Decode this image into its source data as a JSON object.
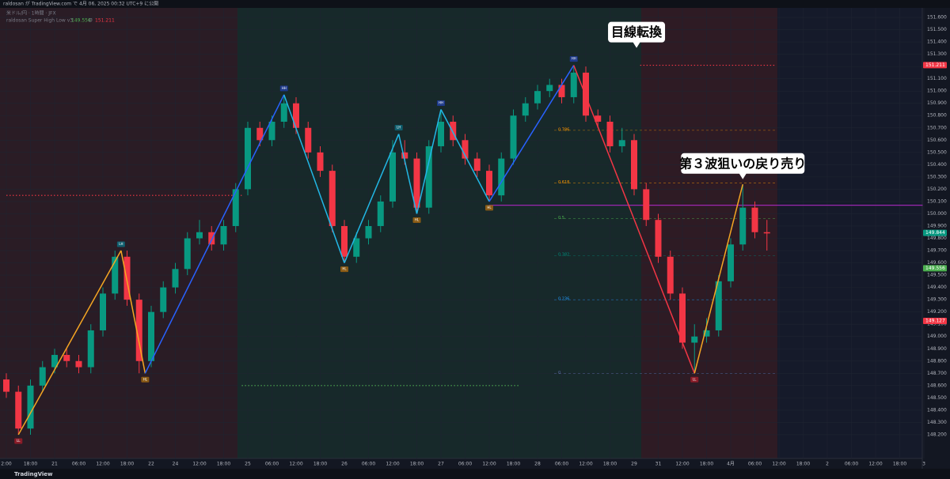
{
  "header": {
    "published": "raldosan が TradingView.com で 4月 06, 2025 00:32 UTC+9 に公開",
    "symbol": "米ドル/円 · 1時間 · JFX",
    "indicator": "raldosan Super High Low v3",
    "indicator_values": [
      "149.556",
      "Ø",
      "151.211"
    ],
    "footer": "TradingView"
  },
  "chart_data": {
    "type": "candlestick",
    "up_color": "#089981",
    "down_color": "#f23645",
    "ylim": [
      148.0,
      151.68
    ],
    "yticks": [
      {
        "value": 148.2,
        "label": "148.200"
      },
      {
        "value": 148.3,
        "label": "148.300"
      },
      {
        "value": 148.4,
        "label": "148.400"
      },
      {
        "value": 148.5,
        "label": "148.500"
      },
      {
        "value": 148.6,
        "label": "148.600"
      },
      {
        "value": 148.7,
        "label": "148.700"
      },
      {
        "value": 148.8,
        "label": "148.800"
      },
      {
        "value": 148.9,
        "label": "148.900"
      },
      {
        "value": 149,
        "label": "149.000"
      },
      {
        "value": 149.1,
        "label": "149.100"
      },
      {
        "value": 149.2,
        "label": "149.200"
      },
      {
        "value": 149.3,
        "label": "149.300"
      },
      {
        "value": 149.4,
        "label": "149.400"
      },
      {
        "value": 149.5,
        "label": "149.500"
      },
      {
        "value": 149.6,
        "label": "149.600"
      },
      {
        "value": 149.7,
        "label": "149.700"
      },
      {
        "value": 149.8,
        "label": "149.800"
      },
      {
        "value": 149.9,
        "label": "149.900"
      },
      {
        "value": 150,
        "label": "150.000"
      },
      {
        "value": 150.1,
        "label": "150.100"
      },
      {
        "value": 150.2,
        "label": "150.200"
      },
      {
        "value": 150.3,
        "label": "150.300"
      },
      {
        "value": 150.4,
        "label": "150.400"
      },
      {
        "value": 150.5,
        "label": "150.500"
      },
      {
        "value": 150.6,
        "label": "150.600"
      },
      {
        "value": 150.7,
        "label": "150.700"
      },
      {
        "value": 150.8,
        "label": "150.800"
      },
      {
        "value": 150.9,
        "label": "150.900"
      },
      {
        "value": 151,
        "label": "151.000"
      },
      {
        "value": 151.1,
        "label": "151.100"
      },
      {
        "value": 151.2,
        "label": "151.200"
      },
      {
        "value": 151.3,
        "label": "151.300"
      },
      {
        "value": 151.4,
        "label": "151.400"
      },
      {
        "value": 151.5,
        "label": "151.500"
      },
      {
        "value": 151.6,
        "label": "151.600"
      }
    ],
    "time_labels": [
      "2:00",
      "18:00",
      "21",
      "06:00",
      "12:00",
      "18:00",
      "22",
      "24",
      "12:00",
      "18:00",
      "25",
      "06:00",
      "12:00",
      "18:00",
      "26",
      "06:00",
      "12:00",
      "18:00",
      "27",
      "06:00",
      "12:00",
      "18:00",
      "28",
      "06:00",
      "12:00",
      "18:00",
      "29",
      "31",
      "12:00",
      "18:00",
      "4月",
      "06:00",
      "12:00",
      "18:00",
      "2",
      "06:00",
      "12:00",
      "18:00",
      "3"
    ],
    "candles": [
      [
        148.65,
        148.7,
        148.5,
        148.55
      ],
      [
        148.55,
        148.6,
        148.2,
        148.25
      ],
      [
        148.25,
        148.65,
        148.2,
        148.6
      ],
      [
        148.6,
        148.8,
        148.55,
        148.75
      ],
      [
        148.75,
        148.9,
        148.7,
        148.85
      ],
      [
        148.85,
        148.9,
        148.75,
        148.8
      ],
      [
        148.8,
        148.85,
        148.7,
        148.75
      ],
      [
        148.75,
        149.1,
        148.7,
        149.05
      ],
      [
        149.05,
        149.4,
        149.0,
        149.35
      ],
      [
        149.35,
        149.7,
        149.3,
        149.65
      ],
      [
        149.65,
        149.7,
        149.25,
        149.3
      ],
      [
        149.3,
        149.35,
        148.7,
        148.8
      ],
      [
        148.8,
        149.25,
        148.75,
        149.2
      ],
      [
        149.2,
        149.45,
        149.15,
        149.4
      ],
      [
        149.4,
        149.6,
        149.35,
        149.55
      ],
      [
        149.55,
        149.85,
        149.5,
        149.8
      ],
      [
        149.8,
        149.95,
        149.75,
        149.85
      ],
      [
        149.85,
        149.9,
        149.7,
        149.75
      ],
      [
        149.75,
        149.95,
        149.7,
        149.9
      ],
      [
        149.9,
        150.25,
        149.85,
        150.2
      ],
      [
        150.2,
        150.75,
        150.15,
        150.7
      ],
      [
        150.7,
        150.75,
        150.55,
        150.6
      ],
      [
        150.6,
        150.8,
        150.55,
        150.75
      ],
      [
        150.75,
        150.97,
        150.7,
        150.9
      ],
      [
        150.9,
        150.95,
        150.65,
        150.7
      ],
      [
        150.7,
        150.75,
        150.45,
        150.5
      ],
      [
        150.5,
        150.55,
        150.3,
        150.35
      ],
      [
        150.35,
        150.4,
        149.85,
        149.9
      ],
      [
        149.9,
        149.95,
        149.6,
        149.65
      ],
      [
        149.65,
        149.85,
        149.6,
        149.8
      ],
      [
        149.8,
        149.95,
        149.75,
        149.9
      ],
      [
        149.9,
        150.15,
        149.85,
        150.1
      ],
      [
        150.1,
        150.6,
        150.05,
        150.5
      ],
      [
        150.5,
        150.6,
        150.4,
        150.45
      ],
      [
        150.45,
        150.5,
        150.0,
        150.05
      ],
      [
        150.05,
        150.6,
        150.0,
        150.55
      ],
      [
        150.55,
        150.85,
        150.5,
        150.75
      ],
      [
        150.75,
        150.8,
        150.55,
        150.6
      ],
      [
        150.6,
        150.65,
        150.4,
        150.45
      ],
      [
        150.45,
        150.5,
        150.3,
        150.35
      ],
      [
        150.35,
        150.4,
        150.1,
        150.15
      ],
      [
        150.15,
        150.5,
        150.1,
        150.45
      ],
      [
        150.45,
        150.85,
        150.4,
        150.8
      ],
      [
        150.8,
        150.95,
        150.75,
        150.9
      ],
      [
        150.9,
        151.05,
        150.85,
        151.0
      ],
      [
        151.0,
        151.1,
        150.95,
        151.05
      ],
      [
        151.05,
        151.1,
        150.9,
        150.95
      ],
      [
        150.95,
        151.21,
        150.9,
        151.15
      ],
      [
        151.15,
        151.2,
        150.75,
        150.8
      ],
      [
        150.8,
        150.85,
        150.7,
        150.75
      ],
      [
        150.75,
        150.8,
        150.5,
        150.55
      ],
      [
        150.55,
        150.7,
        150.5,
        150.6
      ],
      [
        150.6,
        150.65,
        150.15,
        150.2
      ],
      [
        150.2,
        150.25,
        149.9,
        149.95
      ],
      [
        149.95,
        150.0,
        149.6,
        149.65
      ],
      [
        149.65,
        149.7,
        149.3,
        149.35
      ],
      [
        149.35,
        149.4,
        148.9,
        148.95
      ],
      [
        148.95,
        149.1,
        148.7,
        149.0
      ],
      [
        149.0,
        149.15,
        148.95,
        149.05
      ],
      [
        149.05,
        149.5,
        149.0,
        149.45
      ],
      [
        149.45,
        149.8,
        149.4,
        149.75
      ],
      [
        149.75,
        150.24,
        149.7,
        150.05
      ],
      [
        150.05,
        150.1,
        149.8,
        149.85
      ],
      [
        149.85,
        149.95,
        149.7,
        149.84
      ]
    ],
    "zigzag": {
      "x": [
        1,
        9.5,
        11.5,
        23,
        28,
        32.5,
        34,
        36,
        40,
        47,
        57,
        61
      ],
      "y": [
        148.2,
        149.7,
        148.7,
        150.97,
        149.6,
        150.65,
        150.0,
        150.85,
        150.1,
        151.21,
        148.7,
        150.24
      ],
      "labels": [
        "LL",
        "LH",
        "HL",
        "HH",
        "HL",
        "LH",
        "HL",
        "HH",
        "HL",
        "HH",
        "LL",
        null
      ],
      "colors": [
        "#f5a623",
        "#f5a623",
        "#2962ff",
        "#22b7e5",
        "#22b7e5",
        "#22b7e5",
        "#22b7e5",
        "#22b7e5",
        "#2962ff",
        "#f23645",
        "#f5a623"
      ]
    },
    "levels": [
      {
        "price": 150.15,
        "color": "#f23645",
        "from": 0,
        "to": 19.5,
        "style": "dotted"
      },
      {
        "price": 148.6,
        "color": "#4caf50",
        "from": 19.5,
        "to": 42.5,
        "style": "dotted"
      },
      {
        "price": 151.21,
        "color": "#f23645",
        "from": 52.5,
        "to": 63.7,
        "style": "dotted"
      },
      {
        "price": 150.07,
        "color": "#9c27b0",
        "from": 40,
        "to": 75.9,
        "style": "solid"
      }
    ],
    "fib": [
      {
        "ratio": 0.786,
        "price": 150.68,
        "color": "#ff9800"
      },
      {
        "ratio": 0.618,
        "price": 150.25,
        "color": "#ff9800"
      },
      {
        "ratio": 0.5,
        "price": 149.96,
        "color": "#4caf50"
      },
      {
        "ratio": 0.382,
        "price": 149.66,
        "color": "#00897b"
      },
      {
        "ratio": 0.236,
        "price": 149.3,
        "color": "#2196f3"
      },
      {
        "ratio": 0,
        "price": 148.7,
        "color": "#5d6ea8"
      }
    ],
    "price_labels": [
      {
        "value": 151.211,
        "color": "#f23645"
      },
      {
        "value": 149.844,
        "color": "#089981"
      },
      {
        "value": 149.556,
        "color": "#4caf50"
      },
      {
        "value": 149.127,
        "color": "#f23645"
      }
    ],
    "annotations": [
      {
        "text": "目線転換",
        "x": 52.2,
        "price": 151.48
      },
      {
        "text": "第３波狙いの戻り売り",
        "x": 61,
        "price": 150.41
      }
    ]
  }
}
